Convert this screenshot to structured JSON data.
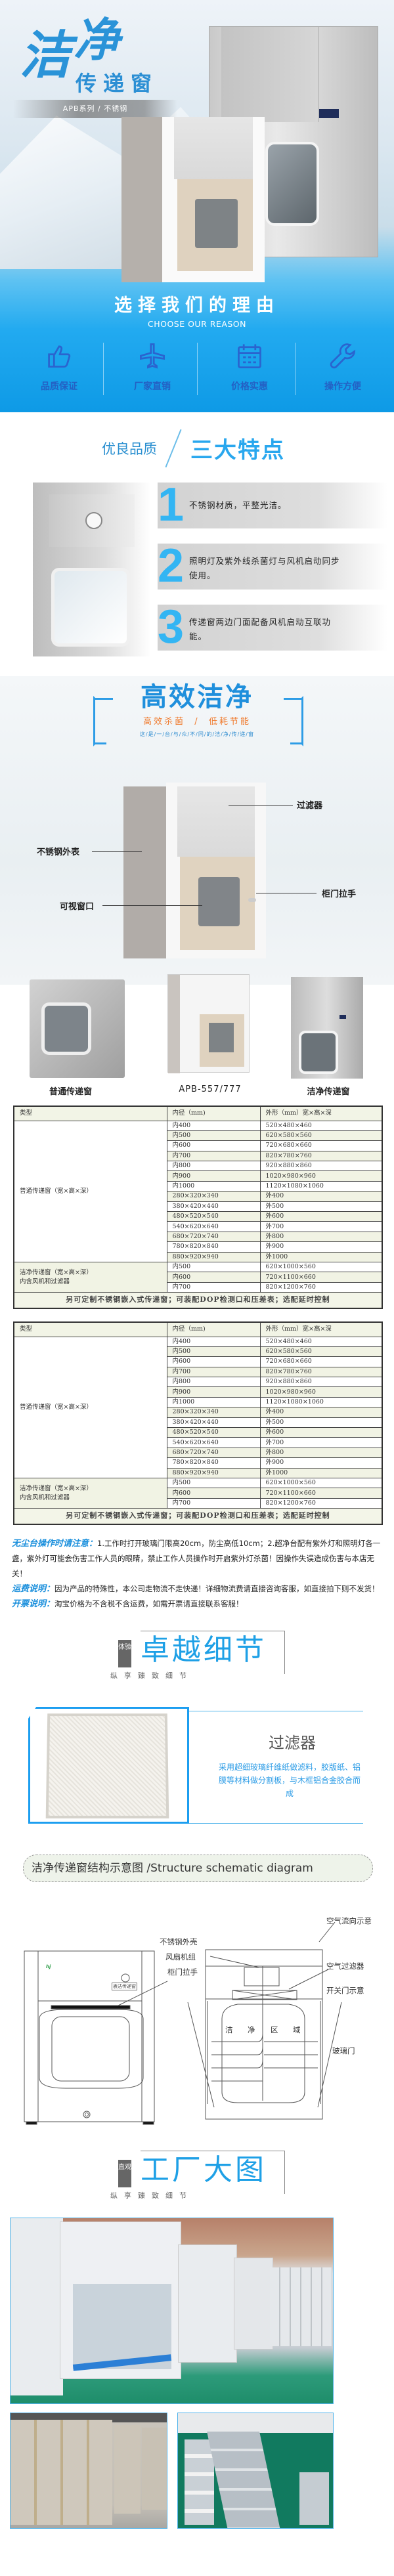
{
  "hero": {
    "title_char_1": "洁",
    "title_char_2": "净",
    "title_sub": "传递窗",
    "series": "APB系列 / 不锈钢",
    "reasons_title": "选择我们的理由",
    "reasons_en": "CHOOSE OUR REASON",
    "reasons": [
      {
        "label": "品质保证",
        "icon": "thumbs-up-icon"
      },
      {
        "label": "厂家直销",
        "icon": "airplane-icon"
      },
      {
        "label": "价格实惠",
        "icon": "calendar-icon"
      },
      {
        "label": "操作方便",
        "icon": "wrench-icon"
      }
    ]
  },
  "features": {
    "title_left": "优良品质",
    "title_right": "三大特点",
    "items": [
      {
        "num": "1",
        "text": "不锈钢材质，平整光洁。"
      },
      {
        "num": "2",
        "text": "照明灯及紫外线杀菌灯与风机启动同步使用。"
      },
      {
        "num": "3",
        "text": "传递窗两边门面配备风机启动互联功能。"
      }
    ]
  },
  "efficient": {
    "title": "高效洁净",
    "subtitle": "高效杀菌  /  低耗节能",
    "tagline": "这/是/一/台/与/众/不/同/的/洁/净/传/递/窗",
    "callouts": {
      "filter": "过滤器",
      "shell": "不锈钢外表",
      "handle": "柜门拉手",
      "window": "可视窗口"
    }
  },
  "products": [
    {
      "label": "普通传递窗"
    },
    {
      "label": "APB-557/777"
    },
    {
      "label": "洁净传递窗"
    }
  ],
  "tables": [
    {
      "headers": [
        "类型",
        "内径（mm)",
        "外形（mm）宽×高×深"
      ],
      "group1_label": "普通传递窗（宽×高×深）",
      "group1_rows": [
        [
          "内400",
          "520×480×460"
        ],
        [
          "内500",
          "620×580×560"
        ],
        [
          "内600",
          "720×680×660"
        ],
        [
          "内700",
          "820×780×760"
        ],
        [
          "内800",
          "920×880×860"
        ],
        [
          "内900",
          "1020×980×960"
        ],
        [
          "内1000",
          "1120×1080×1060"
        ],
        [
          "280×320×340",
          "外400"
        ],
        [
          "380×420×440",
          "外500"
        ],
        [
          "480×520×540",
          "外600"
        ],
        [
          "540×620×640",
          "外700"
        ],
        [
          "680×720×740",
          "外800"
        ],
        [
          "780×820×840",
          "外900"
        ],
        [
          "880×920×940",
          "外1000"
        ]
      ],
      "group2_label_1": "洁净传递窗（宽×高×深）",
      "group2_label_2": "内含风机和过滤器",
      "group2_rows": [
        [
          "内500",
          "620×1000×560"
        ],
        [
          "内600",
          "720×1100×660"
        ],
        [
          "内700",
          "820×1200×760"
        ]
      ],
      "footer": "另可定制不锈钢嵌入式传递窗；可装配DOP检测口和压差表；选配延时控制"
    },
    {
      "headers": [
        "类型",
        "内径（mm)",
        "外形（mm）宽×高×深"
      ],
      "group1_label": "普通传递窗（宽×高×深）",
      "group1_rows": [
        [
          "内400",
          "520×480×460"
        ],
        [
          "内500",
          "620×580×560"
        ],
        [
          "内600",
          "720×680×660"
        ],
        [
          "内700",
          "820×780×760"
        ],
        [
          "内800",
          "920×880×860"
        ],
        [
          "内900",
          "1020×980×960"
        ],
        [
          "内1000",
          "1120×1080×1060"
        ],
        [
          "280×320×340",
          "外400"
        ],
        [
          "380×420×440",
          "外500"
        ],
        [
          "480×520×540",
          "外600"
        ],
        [
          "540×620×640",
          "外700"
        ],
        [
          "680×720×740",
          "外800"
        ],
        [
          "780×820×840",
          "外900"
        ],
        [
          "880×920×940",
          "外1000"
        ]
      ],
      "group2_label_1": "洁净传递窗（宽×高×深）",
      "group2_label_2": "内含风机和过滤器",
      "group2_rows": [
        [
          "内500",
          "620×1000×560"
        ],
        [
          "内600",
          "720×1100×660"
        ],
        [
          "内700",
          "820×1200×760"
        ]
      ],
      "footer": "另可定制不锈钢嵌入式传递窗；可装配DOP检测口和压差表；选配延时控制"
    }
  ],
  "notes": [
    {
      "title": "无尘台操作时请注意：",
      "text": "1.工作时打开玻璃门限高20cm，防尘高低10cm；2.超净台配有紫外灯和照明灯各一盏，紫外灯可能会伤害工作人员的眼睛，禁止工作人员操作时开启紫外灯杀菌！因操作失误造成伤害与本店无关！"
    },
    {
      "title": "运费说明：",
      "text": "因为产品的特殊性，本公司走物流不走快递！详细物流费请直接咨询客服，如直接拍下则不发货！"
    },
    {
      "title": "开票说明：",
      "text": "淘宝价格为不含税不含运费，如需开票请直接联系客服！"
    }
  ],
  "detail_banner": {
    "tag": "体验",
    "title": "卓越细节",
    "sub": "纵享臻致细节"
  },
  "filter": {
    "title": "过滤器",
    "desc": "采用超细玻璃纤维纸做滤料，胶版纸、铝膜等材料做分割板，与木框铝合金胶合而成"
  },
  "structure": {
    "title": "洁净传递窗结构示意图 /Structure schematic diagram",
    "front_plate": "表洁传递窗",
    "labels": {
      "shell": "不锈钢外壳",
      "fan": "风扇机组",
      "handle": "柜门拉手",
      "airflow": "空气流向示意",
      "air_filter": "空气过滤器",
      "door_switch": "开关门示意",
      "glass_door": "玻璃门",
      "clean_zone": [
        "洁",
        "净",
        "区",
        "域"
      ]
    }
  },
  "factory_banner": {
    "tag": "直观",
    "title": "工厂大图",
    "sub": "纵享臻致细节"
  },
  "colors": {
    "brand_blue": "#1ea0e6",
    "feature_blue": "#33b5f3",
    "orange": "#f07b2e"
  }
}
